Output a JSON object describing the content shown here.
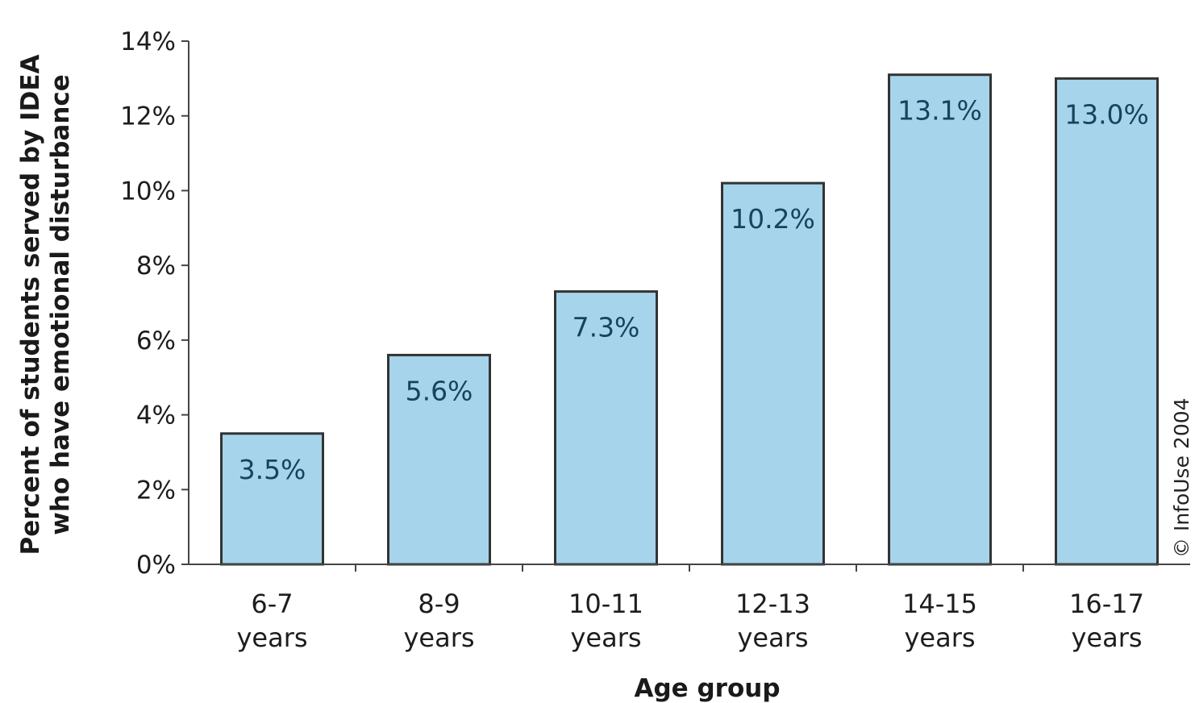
{
  "chart_data": {
    "type": "bar",
    "categories": [
      [
        "6-7",
        "years"
      ],
      [
        "8-9",
        "years"
      ],
      [
        "10-11",
        "years"
      ],
      [
        "12-13",
        "years"
      ],
      [
        "14-15",
        "years"
      ],
      [
        "16-17",
        "years"
      ]
    ],
    "values": [
      3.5,
      5.6,
      7.3,
      10.2,
      13.1,
      13.0
    ],
    "data_labels": [
      "3.5%",
      "5.6%",
      "7.3%",
      "10.2%",
      "13.1%",
      "13.0%"
    ],
    "xlabel": "Age group",
    "ylabel": [
      "Percent of students served by IDEA",
      "who have emotional disturbance"
    ],
    "ylim": [
      0,
      14
    ],
    "yticks": [
      0,
      2,
      4,
      6,
      8,
      10,
      12,
      14
    ],
    "ytick_labels": [
      "0%",
      "2%",
      "4%",
      "6%",
      "8%",
      "10%",
      "12%",
      "14%"
    ],
    "grid": false,
    "bar_color": "#a6d4ea",
    "bar_edge_color": "#333333",
    "credit": "© InfoUse 2004"
  }
}
